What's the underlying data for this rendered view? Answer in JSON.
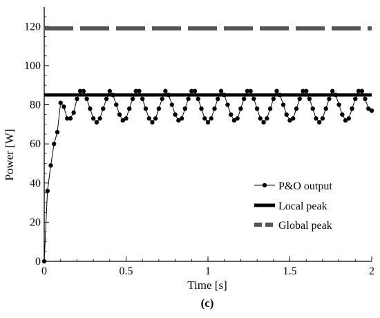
{
  "chart_data": {
    "type": "line",
    "panel_label": "(c)",
    "xlabel": "Time [s]",
    "ylabel": "Power [W]",
    "xlim": [
      0,
      2
    ],
    "ylim": [
      0,
      130
    ],
    "xticks": [
      0,
      0.5,
      1,
      1.5,
      2
    ],
    "xtick_labels": [
      "0",
      "0.5",
      "1",
      "1.5",
      "2"
    ],
    "yticks": [
      0,
      20,
      40,
      60,
      80,
      100,
      120
    ],
    "ytick_labels": [
      "0",
      "20",
      "40",
      "60",
      "80",
      "100",
      "120"
    ],
    "grid": false,
    "legend_position": "bottom-right",
    "series": [
      {
        "name": "P&O output",
        "style": "line-with-markers",
        "color": "#000000",
        "x": [
          0.0,
          0.02,
          0.04,
          0.06,
          0.08,
          0.1,
          0.12,
          0.14,
          0.16,
          0.18,
          0.2,
          0.22,
          0.24,
          0.26,
          0.28,
          0.3,
          0.32,
          0.34,
          0.36,
          0.38,
          0.4,
          0.42,
          0.44,
          0.46,
          0.48,
          0.5,
          0.52,
          0.54,
          0.56,
          0.58,
          0.6,
          0.62,
          0.64,
          0.66,
          0.68,
          0.7,
          0.72,
          0.74,
          0.76,
          0.78,
          0.8,
          0.82,
          0.84,
          0.86,
          0.88,
          0.9,
          0.92,
          0.94,
          0.96,
          0.98,
          1.0,
          1.02,
          1.04,
          1.06,
          1.08,
          1.1,
          1.12,
          1.14,
          1.16,
          1.18,
          1.2,
          1.22,
          1.24,
          1.26,
          1.28,
          1.3,
          1.32,
          1.34,
          1.36,
          1.38,
          1.4,
          1.42,
          1.44,
          1.46,
          1.48,
          1.5,
          1.52,
          1.54,
          1.56,
          1.58,
          1.6,
          1.62,
          1.64,
          1.66,
          1.68,
          1.7,
          1.72,
          1.74,
          1.76,
          1.78,
          1.8,
          1.82,
          1.84,
          1.86,
          1.88,
          1.9,
          1.92,
          1.94,
          1.96,
          1.98,
          2.0
        ],
        "y": [
          0,
          36,
          49,
          60,
          66,
          81,
          79,
          73,
          73,
          76,
          83,
          87,
          87,
          83,
          78,
          73,
          71,
          73,
          78,
          83,
          87,
          85,
          80,
          75,
          72,
          73,
          78,
          83,
          87,
          87,
          83,
          78,
          73,
          71,
          73,
          78,
          83,
          87,
          85,
          80,
          75,
          72,
          73,
          78,
          83,
          87,
          87,
          83,
          78,
          73,
          71,
          73,
          78,
          83,
          87,
          85,
          80,
          75,
          72,
          73,
          78,
          83,
          87,
          87,
          83,
          78,
          73,
          71,
          73,
          78,
          83,
          87,
          85,
          80,
          75,
          72,
          73,
          78,
          83,
          87,
          87,
          83,
          78,
          73,
          71,
          73,
          78,
          83,
          87,
          85,
          80,
          75,
          72,
          73,
          78,
          83,
          87,
          87,
          83,
          78,
          77
        ]
      },
      {
        "name": "Local peak",
        "style": "thick-solid",
        "color": "#000000",
        "x": [
          0,
          2
        ],
        "y": [
          85,
          85
        ]
      },
      {
        "name": "Global peak",
        "style": "thick-dashed",
        "color": "#555555",
        "x": [
          0,
          2
        ],
        "y": [
          119,
          119
        ]
      }
    ]
  }
}
